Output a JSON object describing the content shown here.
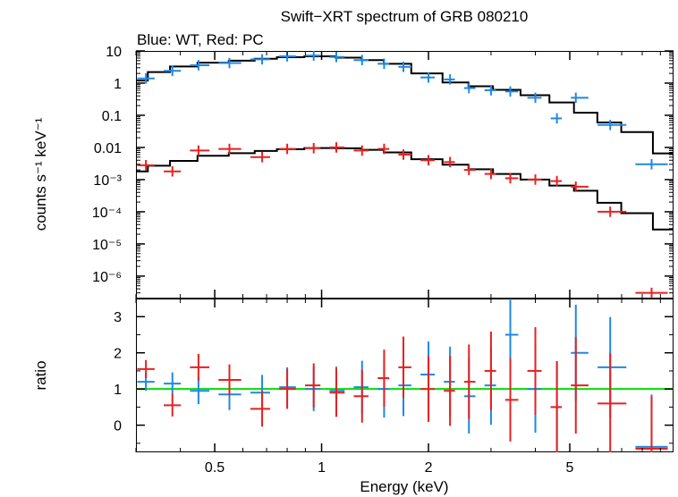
{
  "chart_data": [
    {
      "type": "scatter",
      "title": "Swift−XRT spectrum of GRB 080210",
      "subtitle": "Blue: WT, Red: PC",
      "xlabel": "",
      "ylabel": "counts s⁻¹ keV⁻¹",
      "xscale": "log",
      "yscale": "log",
      "xlim": [
        0.3,
        9.8
      ],
      "ylim": [
        2e-07,
        10
      ],
      "x_tick_labels": [
        "0.5",
        "1",
        "2",
        "5"
      ],
      "y_tick_labels": [
        "10",
        "1",
        "0.1",
        "0.01",
        "10⁻³",
        "10⁻⁴",
        "10⁻⁵",
        "10⁻⁶"
      ],
      "colors": {
        "wt": "#1e88e5",
        "pc": "#e82020",
        "model": "#000000"
      },
      "series": [
        {
          "color": "blue",
          "x": [
            0.32,
            0.38,
            0.45,
            0.55,
            0.68,
            0.8,
            0.95,
            1.1,
            1.3,
            1.5,
            1.7,
            2.0,
            2.3,
            2.6,
            3.0,
            3.4,
            4.0,
            4.6,
            5.2,
            6.5,
            8.5
          ],
          "values": [
            1.4,
            2.4,
            3.6,
            4.2,
            5.5,
            6.8,
            7.2,
            6.5,
            5.2,
            4.0,
            3.2,
            1.5,
            1.3,
            0.7,
            0.6,
            0.55,
            0.35,
            0.08,
            0.35,
            0.05,
            0.003
          ]
        },
        {
          "color": "red",
          "x": [
            0.32,
            0.38,
            0.45,
            0.55,
            0.68,
            0.8,
            0.95,
            1.1,
            1.3,
            1.5,
            1.7,
            2.0,
            2.3,
            2.6,
            3.0,
            3.4,
            4.0,
            4.6,
            5.2,
            6.5,
            8.5
          ],
          "values": [
            0.0028,
            0.0018,
            0.008,
            0.009,
            0.005,
            0.009,
            0.0095,
            0.01,
            0.008,
            0.009,
            0.006,
            0.004,
            0.0035,
            0.002,
            0.0015,
            0.0011,
            0.001,
            0.0009,
            0.0006,
            0.0001,
            3e-07
          ]
        },
        {
          "color": "black",
          "x": [
            0.3,
            0.35,
            0.4,
            0.5,
            0.6,
            0.7,
            0.8,
            1.0,
            1.2,
            1.4,
            1.6,
            2.0,
            2.4,
            2.8,
            3.3,
            4.0,
            4.8,
            5.5,
            6.5,
            7.5,
            9.8
          ],
          "values": [
            1.2,
            2.2,
            3.3,
            4.3,
            5.0,
            5.7,
            6.4,
            6.8,
            6.2,
            5.2,
            4.0,
            2.0,
            1.05,
            0.8,
            0.62,
            0.42,
            0.25,
            0.12,
            0.06,
            0.03,
            0.0065
          ]
        },
        {
          "color": "black",
          "x": [
            0.3,
            0.35,
            0.4,
            0.5,
            0.6,
            0.7,
            0.8,
            1.0,
            1.2,
            1.4,
            1.6,
            2.0,
            2.4,
            2.8,
            3.3,
            4.0,
            4.8,
            5.5,
            6.5,
            7.5,
            9.8
          ],
          "values": [
            0.0018,
            0.0027,
            0.0038,
            0.0055,
            0.0066,
            0.0078,
            0.0088,
            0.0096,
            0.0094,
            0.0084,
            0.007,
            0.0043,
            0.0029,
            0.0021,
            0.0015,
            0.001,
            0.00065,
            0.00045,
            0.00019,
            9e-05,
            2.8e-05
          ]
        }
      ]
    },
    {
      "type": "scatter",
      "xlabel": "Energy (keV)",
      "ylabel": "ratio",
      "xscale": "log",
      "xlim": [
        0.3,
        9.8
      ],
      "ylim": [
        -0.75,
        3.5
      ],
      "x_tick_labels": [
        "0.5",
        "1",
        "2",
        "5"
      ],
      "y_tick_labels": [
        "0",
        "1",
        "2",
        "3"
      ],
      "reference_line": {
        "y": 1.0,
        "color": "#00e000"
      },
      "series": [
        {
          "color": "blue",
          "x": [
            0.32,
            0.38,
            0.45,
            0.55,
            0.68,
            0.8,
            0.95,
            1.1,
            1.3,
            1.5,
            1.7,
            2.0,
            2.3,
            2.6,
            3.0,
            3.4,
            4.0,
            4.6,
            5.2,
            6.5,
            8.5
          ],
          "values": [
            1.2,
            1.15,
            0.95,
            0.85,
            0.9,
            1.05,
            1.0,
            0.95,
            1.05,
            1.0,
            1.1,
            1.4,
            1.2,
            0.8,
            1.1,
            2.5,
            1.0,
            0.5,
            2.0,
            1.6,
            -0.6
          ]
        },
        {
          "color": "red",
          "x": [
            0.32,
            0.38,
            0.45,
            0.55,
            0.68,
            0.8,
            0.95,
            1.1,
            1.3,
            1.5,
            1.7,
            2.0,
            2.3,
            2.6,
            3.0,
            3.4,
            4.0,
            4.6,
            5.2,
            6.5,
            8.5
          ],
          "values": [
            1.55,
            0.55,
            1.6,
            1.25,
            0.45,
            1.0,
            1.1,
            0.9,
            0.8,
            1.3,
            1.6,
            1.0,
            0.95,
            1.2,
            1.5,
            0.7,
            1.5,
            0.5,
            1.1,
            0.6,
            -0.65
          ]
        }
      ]
    }
  ]
}
